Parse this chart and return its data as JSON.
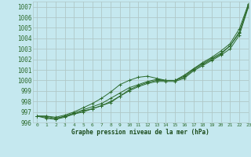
{
  "title": "Graphe pression niveau de la mer (hPa)",
  "background_color": "#c5e8ef",
  "grid_color": "#b0c8c8",
  "line_color": "#2d6b2d",
  "xlim": [
    -0.5,
    23
  ],
  "ylim": [
    996.0,
    1007.5
  ],
  "yticks": [
    996,
    997,
    998,
    999,
    1000,
    1001,
    1002,
    1003,
    1004,
    1005,
    1006,
    1007
  ],
  "xticks": [
    0,
    1,
    2,
    3,
    4,
    5,
    6,
    7,
    8,
    9,
    10,
    11,
    12,
    13,
    14,
    15,
    16,
    17,
    18,
    19,
    20,
    21,
    22,
    23
  ],
  "series": [
    [
      996.6,
      996.6,
      996.4,
      996.6,
      996.9,
      997.2,
      997.5,
      997.8,
      998.3,
      998.8,
      999.3,
      999.6,
      999.9,
      1000.1,
      1000.0,
      1000.0,
      1000.3,
      1001.0,
      1001.5,
      1002.0,
      1002.5,
      1003.3,
      1004.5,
      1007.2
    ],
    [
      996.6,
      996.5,
      996.3,
      996.6,
      996.8,
      997.1,
      997.3,
      997.6,
      997.9,
      998.5,
      999.0,
      999.4,
      999.7,
      999.9,
      999.9,
      999.9,
      1000.2,
      1000.9,
      1001.4,
      1001.9,
      1002.4,
      1003.0,
      1004.3,
      1007.0
    ],
    [
      996.6,
      996.4,
      996.3,
      996.5,
      996.8,
      997.0,
      997.3,
      997.6,
      998.0,
      998.5,
      999.1,
      999.5,
      999.8,
      1000.0,
      1000.0,
      1000.0,
      1000.5,
      1001.1,
      1001.6,
      1002.1,
      1002.6,
      1003.3,
      1004.6,
      1007.1
    ],
    [
      996.6,
      996.6,
      996.5,
      996.7,
      997.0,
      997.4,
      997.8,
      998.3,
      998.9,
      999.6,
      1000.0,
      1000.3,
      1000.4,
      1000.2,
      1000.0,
      1000.0,
      1000.4,
      1001.1,
      1001.7,
      1002.2,
      1002.8,
      1003.5,
      1004.9,
      1007.3
    ]
  ]
}
